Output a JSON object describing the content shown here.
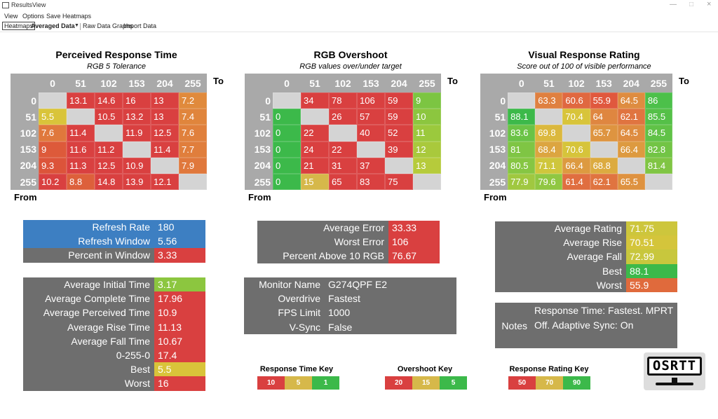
{
  "window": {
    "title": "ResultsView"
  },
  "menu": [
    "View",
    "Options",
    "Save Heatmaps"
  ],
  "toolbar": {
    "tabs": [
      "Heatmaps",
      "Averaged Data",
      "Raw Data Graphs",
      "Import Data"
    ]
  },
  "heatmaps": [
    {
      "title": "Perceived Response Time",
      "subtitle": "RGB 5 Tolerance",
      "to_label": "To",
      "from_label": "From",
      "columns": [
        0,
        51,
        102,
        153,
        204,
        255
      ],
      "rows": [
        0,
        51,
        102,
        153,
        204,
        255
      ],
      "cells": [
        [
          null,
          13.1,
          14.6,
          16,
          13,
          7.2
        ],
        [
          5.5,
          null,
          10.5,
          13.2,
          13,
          7.4
        ],
        [
          7.6,
          11.4,
          null,
          11.9,
          12.5,
          7.6
        ],
        [
          9,
          11.6,
          11.2,
          null,
          11.4,
          7.7
        ],
        [
          9.3,
          11.3,
          12.5,
          10.9,
          null,
          7.9
        ],
        [
          10.2,
          8.8,
          14.8,
          13.9,
          12.1,
          null
        ]
      ],
      "colors": [
        [
          "#d4d4d4",
          "#d94040",
          "#d94040",
          "#d94040",
          "#d94040",
          "#e08a3c"
        ],
        [
          "#d9c43a",
          "#d4d4d4",
          "#d94040",
          "#d94040",
          "#d94040",
          "#e0853c"
        ],
        [
          "#e0783c",
          "#d94040",
          "#d4d4d4",
          "#d94040",
          "#d94040",
          "#e0803c"
        ],
        [
          "#dd5a3a",
          "#d94040",
          "#d94040",
          "#d4d4d4",
          "#d94040",
          "#e07e3c"
        ],
        [
          "#dc543a",
          "#d94040",
          "#d94040",
          "#d94040",
          "#d4d4d4",
          "#e0783c"
        ],
        [
          "#d94040",
          "#dd603b",
          "#d94040",
          "#d94040",
          "#d94040",
          "#d4d4d4"
        ]
      ]
    },
    {
      "title": "RGB Overshoot",
      "subtitle": "RGB values over/under target",
      "to_label": "To",
      "from_label": "From",
      "columns": [
        0,
        51,
        102,
        153,
        204,
        255
      ],
      "rows": [
        0,
        51,
        102,
        153,
        204,
        255
      ],
      "cells": [
        [
          null,
          34,
          78,
          106,
          59,
          9
        ],
        [
          0,
          null,
          26,
          57,
          59,
          10
        ],
        [
          0,
          22,
          null,
          40,
          52,
          11
        ],
        [
          0,
          24,
          22,
          null,
          39,
          12
        ],
        [
          0,
          21,
          31,
          37,
          null,
          13
        ],
        [
          0,
          15,
          65,
          83,
          75,
          null
        ]
      ],
      "colors": [
        [
          "#d4d4d4",
          "#d94040",
          "#d94040",
          "#d94040",
          "#d94040",
          "#7cc542"
        ],
        [
          "#3cb94a",
          "#d4d4d4",
          "#d94040",
          "#d94040",
          "#d94040",
          "#8cc63f"
        ],
        [
          "#3cb94a",
          "#d94040",
          "#d4d4d4",
          "#d94040",
          "#d94040",
          "#9bc93d"
        ],
        [
          "#3cb94a",
          "#d94040",
          "#d94040",
          "#d4d4d4",
          "#d94040",
          "#a9c93c"
        ],
        [
          "#3cb94a",
          "#d94040",
          "#d94040",
          "#d94040",
          "#d4d4d4",
          "#b6cb3b"
        ],
        [
          "#3cb94a",
          "#d6b84a",
          "#d94040",
          "#d94040",
          "#d94040",
          "#d4d4d4"
        ]
      ]
    },
    {
      "title": "Visual Response Rating",
      "subtitle": "Score out of 100 of visible performance",
      "to_label": "To",
      "from_label": "From",
      "columns": [
        0,
        51,
        102,
        153,
        204,
        255
      ],
      "rows": [
        0,
        51,
        102,
        153,
        204,
        255
      ],
      "cells": [
        [
          null,
          63.3,
          60.6,
          55.9,
          64.5,
          86
        ],
        [
          88.1,
          null,
          70.4,
          64,
          62.1,
          85.5
        ],
        [
          83.6,
          69.8,
          null,
          65.7,
          64.5,
          84.5
        ],
        [
          81,
          68.4,
          70.6,
          null,
          66.4,
          82.8
        ],
        [
          80.5,
          71.1,
          66.4,
          68.8,
          null,
          81.4
        ],
        [
          77.9,
          79.6,
          61.4,
          62.1,
          65.5,
          null
        ]
      ],
      "colors": [
        [
          "#d4d4d4",
          "#df8040",
          "#e06840",
          "#e0583e",
          "#de8c40",
          "#4cc04a"
        ],
        [
          "#3cb94a",
          "#d4d4d4",
          "#d8c43a",
          "#df8640",
          "#e07440",
          "#55c048"
        ],
        [
          "#6ac346",
          "#dbb83e",
          "#d4d4d4",
          "#de9440",
          "#de8c40",
          "#60c247"
        ],
        [
          "#7fc544",
          "#dca540",
          "#d6c43a",
          "#d4d4d4",
          "#dd9a40",
          "#72c445"
        ],
        [
          "#86c643",
          "#cfc63c",
          "#dd9a40",
          "#dcab40",
          "#d4d4d4",
          "#80c544"
        ],
        [
          "#a0c840",
          "#90c742",
          "#e06e40",
          "#e07440",
          "#de9240",
          "#d4d4d4"
        ]
      ]
    }
  ],
  "panels": [
    {
      "color": "#6e6e6e",
      "rows": [
        {
          "label": "Refresh Rate",
          "value": 180,
          "label_color": "#3d7fc2",
          "color": "#3d7fc2"
        },
        {
          "label": "Refresh Window",
          "value": 5.56,
          "label_color": "#3d7fc2",
          "color": "#3d7fc2"
        },
        {
          "label": "Percent in Window",
          "value": 3.33,
          "color": "#d94040"
        }
      ]
    },
    {
      "color": "#6e6e6e",
      "rows": [
        {
          "label": "Average Initial Time",
          "value": 3.17,
          "color": "#8cc63f"
        },
        {
          "label": "Average Complete Time",
          "value": 17.96,
          "color": "#d94040"
        },
        {
          "label": "Average Perceived Time",
          "value": 10.9,
          "color": "#d94040"
        },
        {
          "label": "Average Rise Time",
          "value": 11.13,
          "color": "#d94040"
        },
        {
          "label": "Average Fall Time",
          "value": 10.67,
          "color": "#d94040"
        },
        {
          "label": "0-255-0",
          "value": 17.4,
          "color": "#d94040"
        },
        {
          "label": "Best",
          "value": 5.5,
          "color": "#d9c43a"
        },
        {
          "label": "Worst",
          "value": 16,
          "color": "#d94040"
        }
      ]
    },
    {
      "color": "#6e6e6e",
      "rows": [
        {
          "label": "Average Error",
          "value": 33.33,
          "color": "#d94040"
        },
        {
          "label": "Worst Error",
          "value": 106,
          "color": "#d94040"
        },
        {
          "label": "Percent Above 10 RGB",
          "value": 76.67,
          "color": "#d94040"
        }
      ]
    },
    {
      "color": "#6e6e6e",
      "rows": [
        {
          "label": "Monitor Name",
          "value": "G274QPF E2",
          "color": "#6e6e6e"
        },
        {
          "label": "Overdrive",
          "value": "Fastest",
          "color": "#6e6e6e"
        },
        {
          "label": "FPS Limit",
          "value": 1000,
          "color": "#6e6e6e"
        },
        {
          "label": "V-Sync",
          "value": "False",
          "color": "#6e6e6e"
        }
      ]
    },
    {
      "color": "#6e6e6e",
      "rows": [
        {
          "label": "Average Rating",
          "value": 71.75,
          "color": "#cdc63c"
        },
        {
          "label": "Average Rise",
          "value": 70.51,
          "color": "#d4c53b"
        },
        {
          "label": "Average Fall",
          "value": 72.99,
          "color": "#c8c73d"
        },
        {
          "label": "Best",
          "value": 88.1,
          "color": "#3cb94a"
        },
        {
          "label": "Worst",
          "value": 55.9,
          "color": "#e06a3c"
        }
      ]
    }
  ],
  "notes": {
    "label": "Notes",
    "text": "Response Time: Fastest. MPRT Off. Adaptive Sync: On"
  },
  "keys": [
    {
      "title": "Response Time Key",
      "values": [
        10,
        5,
        1
      ],
      "colors": [
        "#d94040",
        "#d6b84a",
        "#3cb94a"
      ]
    },
    {
      "title": "Overshoot Key",
      "values": [
        20,
        15,
        5
      ],
      "colors": [
        "#d94040",
        "#d6b84a",
        "#3cb94a"
      ]
    },
    {
      "title": "Response Rating Key",
      "values": [
        50,
        70,
        90
      ],
      "colors": [
        "#d94040",
        "#d6b84a",
        "#3cb94a"
      ]
    }
  ],
  "logo": {
    "text": "OSRTT"
  }
}
